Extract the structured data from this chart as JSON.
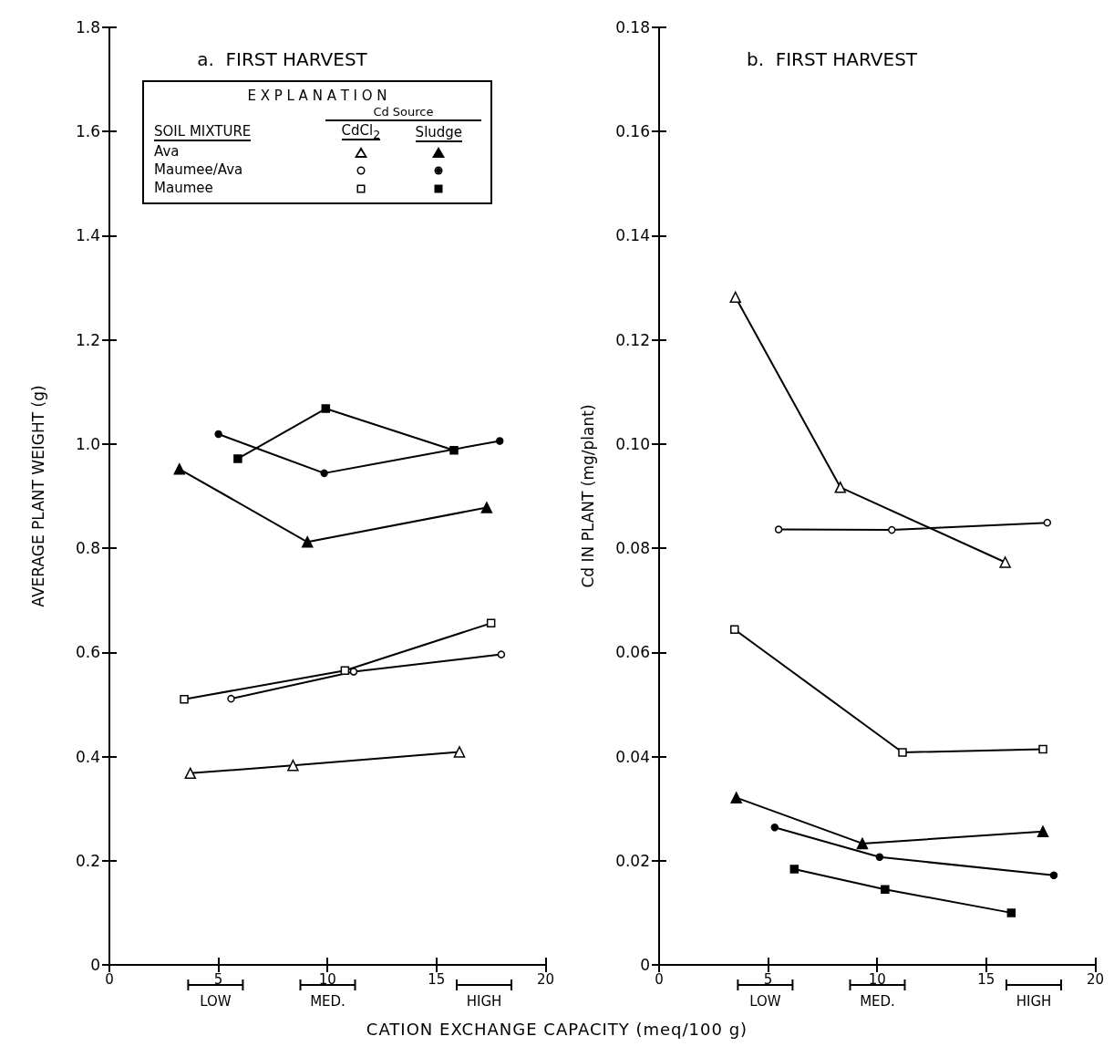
{
  "chart_data": [
    {
      "type": "line",
      "title": "a.  FIRST HARVEST",
      "xlabel": "CATION EXCHANGE CAPACITY (meq/100 g)",
      "ylabel": "AVERAGE PLANT WEIGHT (g)",
      "annotations": [
        "E X P L A N A T I O N",
        "Cd Source",
        "SOIL MIXTURE",
        "CdCl$_{2}$",
        "Sludge",
        "Ava",
        "Maumee/Ava",
        "Maumee",
        "LOW",
        "MED.",
        "HIGH"
      ],
      "xlim": [
        0,
        20
      ],
      "xticks": [
        0,
        5,
        10,
        15,
        20
      ],
      "ylim": [
        0,
        1.8
      ],
      "yticks": [
        0,
        0.2,
        0.4,
        0.6,
        0.8,
        {
          "value": 1,
          "label": "1.0"
        },
        1.2,
        1.4,
        1.6,
        1.8
      ],
      "grid": false,
      "series": [
        {
          "color": "#000000",
          "marker": "triangle",
          "colors": [
            "#ffffff",
            "#ffffff",
            "#ffffff"
          ],
          "x": [
            3.71,
            8.42,
            16.05
          ],
          "values": [
            0.368,
            0.383,
            0.409
          ]
        },
        {
          "color": "#000000",
          "marker": "triangle",
          "colors": [
            "#000000",
            "#000000",
            "#000000"
          ],
          "x": [
            3.21,
            9.08,
            17.3
          ],
          "values": [
            0.952,
            0.812,
            0.878
          ]
        },
        {
          "color": "#000000",
          "marker": "circle",
          "colors": [
            "#ffffff",
            "#ffffff",
            "#ffffff"
          ],
          "x": [
            5.58,
            11.2,
            17.97
          ],
          "values": [
            0.511,
            0.563,
            0.596
          ]
        },
        {
          "color": "#000000",
          "marker": "circle",
          "colors": [
            "#000000",
            "#000000",
            "#000000"
          ],
          "x": [
            5.0,
            9.85,
            17.9
          ],
          "values": [
            1.019,
            0.944,
            1.006
          ]
        },
        {
          "color": "#000000",
          "marker": "square",
          "colors": [
            "#ffffff",
            "#ffffff",
            "#ffffff"
          ],
          "x": [
            3.43,
            10.8,
            17.5
          ],
          "values": [
            0.51,
            0.565,
            0.656
          ]
        },
        {
          "color": "#000000",
          "marker": "square",
          "colors": [
            "#000000",
            "#000000",
            "#000000"
          ],
          "x": [
            5.89,
            9.92,
            15.8
          ],
          "values": [
            0.972,
            1.068,
            0.988
          ]
        }
      ]
    },
    {
      "type": "line",
      "title": "b.  FIRST HARVEST",
      "ylabel": "Cd IN PLANT (mg/plant)",
      "annotations": [
        "LOW",
        "MED.",
        "HIGH"
      ],
      "xlim": [
        0,
        20
      ],
      "xticks": [
        0,
        5,
        10,
        15,
        20
      ],
      "ylim": [
        0,
        0.18
      ],
      "yticks": [
        0,
        0.02,
        0.04,
        0.06,
        0.08,
        {
          "value": 0.1,
          "label": "0.10"
        },
        0.12,
        0.14,
        0.16,
        0.18
      ],
      "grid": false,
      "series": [
        {
          "color": "#000000",
          "marker": "triangle",
          "colors": [
            "#ffffff",
            "#ffffff",
            "#ffffff"
          ],
          "x": [
            3.5,
            8.31,
            15.87
          ],
          "values": [
            0.1282,
            0.0917,
            0.0773
          ]
        },
        {
          "color": "#000000",
          "marker": "triangle",
          "colors": [
            "#000000",
            "#000000",
            "#000000"
          ],
          "x": [
            3.54,
            9.32,
            17.6
          ],
          "values": [
            0.0321,
            0.0233,
            0.0256
          ]
        },
        {
          "color": "#000000",
          "marker": "circle",
          "colors": [
            "#ffffff",
            "#ffffff",
            "#ffffff"
          ],
          "x": [
            5.48,
            10.67,
            17.8
          ],
          "values": [
            0.0836,
            0.0835,
            0.0849
          ]
        },
        {
          "color": "#000000",
          "marker": "circle",
          "colors": [
            "#000000",
            "#000000",
            "#000000"
          ],
          "x": [
            5.3,
            10.11,
            18.1
          ],
          "values": [
            0.0264,
            0.0207,
            0.0172
          ]
        },
        {
          "color": "#000000",
          "marker": "square",
          "colors": [
            "#ffffff",
            "#ffffff",
            "#ffffff"
          ],
          "x": [
            3.46,
            11.16,
            17.6
          ],
          "values": [
            0.0644,
            0.0408,
            0.0414
          ]
        },
        {
          "color": "#000000",
          "marker": "square",
          "colors": [
            "#000000",
            "#000000",
            "#000000"
          ],
          "x": [
            6.2,
            10.36,
            16.15
          ],
          "values": [
            0.0184,
            0.0145,
            0.01
          ]
        }
      ]
    }
  ]
}
